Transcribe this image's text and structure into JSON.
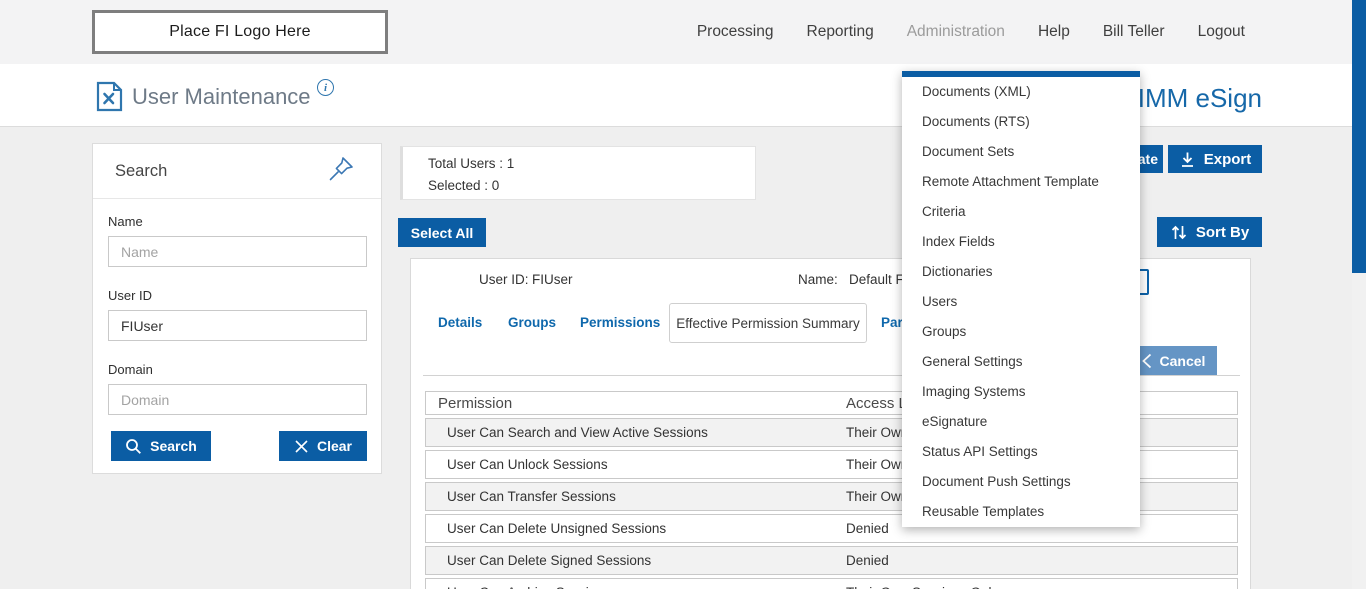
{
  "topbar": {
    "logo_placeholder": "Place FI Logo Here",
    "nav_items": [
      {
        "label": "Processing",
        "active": false
      },
      {
        "label": "Reporting",
        "active": false
      },
      {
        "label": "Administration",
        "active": true
      },
      {
        "label": "Help",
        "active": false
      },
      {
        "label": "Bill Teller",
        "active": false
      },
      {
        "label": "Logout",
        "active": false
      }
    ]
  },
  "header": {
    "page_title": "User Maintenance",
    "info_icon": "i",
    "brand": "IMM eSign"
  },
  "admin_menu": {
    "items": [
      "Documents (XML)",
      "Documents (RTS)",
      "Document Sets",
      "Remote Attachment Template",
      "Criteria",
      "Index Fields",
      "Dictionaries",
      "Users",
      "Groups",
      "General Settings",
      "Imaging Systems",
      "eSignature",
      "Status API Settings",
      "Document Push Settings",
      "Reusable Templates"
    ]
  },
  "search_panel": {
    "title": "Search",
    "fields": [
      {
        "label": "Name",
        "placeholder": "Name",
        "value": ""
      },
      {
        "label": "User ID",
        "placeholder": "",
        "value": "FIUser"
      },
      {
        "label": "Domain",
        "placeholder": "Domain",
        "value": ""
      }
    ],
    "search_button": "Search",
    "clear_button": "Clear"
  },
  "stats": {
    "total_users": "Total Users : 1",
    "selected": "Selected : 0"
  },
  "toolbar": {
    "select_all": "Select All",
    "create": "Create",
    "export": "Export",
    "sort_by": "Sort By"
  },
  "user_card": {
    "user_id_label": "User ID:",
    "user_id_value": "FIUser",
    "name_label": "Name:",
    "name_value": "Default FI User",
    "tabs": [
      "Details",
      "Groups",
      "Permissions",
      "Effective Permission Summary",
      "Part"
    ],
    "active_tab": "Effective Permission Summary",
    "cancel_button": "Cancel"
  },
  "permissions_table": {
    "columns": [
      "Permission",
      "Access Level"
    ],
    "rows": [
      [
        "User Can Search and View Active Sessions",
        "Their Own Sessions Only"
      ],
      [
        "User Can Unlock Sessions",
        "Their Own Sessions Only"
      ],
      [
        "User Can Transfer Sessions",
        "Their Own Sessions Only"
      ],
      [
        "User Can Delete Unsigned Sessions",
        "Denied"
      ],
      [
        "User Can Delete Signed Sessions",
        "Denied"
      ],
      [
        "User Can Archive Sessions",
        "Their Own Sessions Only"
      ]
    ]
  },
  "colors": {
    "primary_blue": "#0b5da4",
    "cancel_blue": "#6595c5",
    "link_blue": "#0f68ac",
    "brand_blue": "#1668a9"
  }
}
